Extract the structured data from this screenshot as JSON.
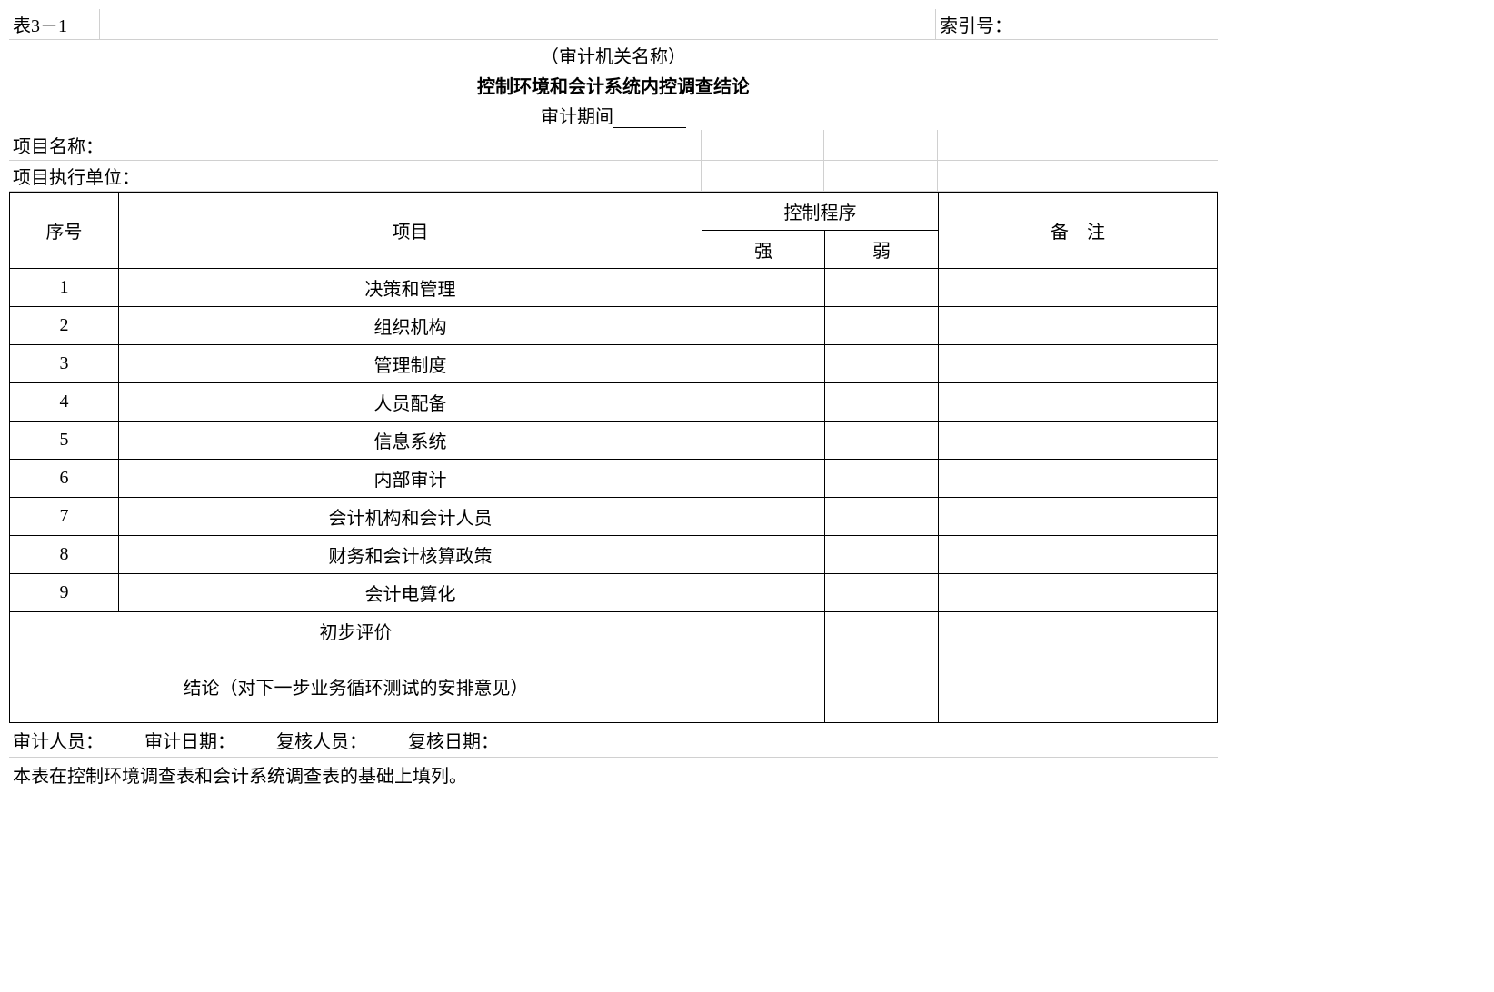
{
  "table_number": "表3－1",
  "index_label": "索引号：",
  "header": {
    "org": "（审计机关名称）",
    "title": "控制环境和会计系统内控调查结论",
    "period_label": "审计期间"
  },
  "info": {
    "project_name": "项目名称：",
    "project_unit": "项目执行单位："
  },
  "columns": {
    "seq": "序号",
    "item": "项目",
    "control": "控制程序",
    "strong": "强",
    "weak": "弱",
    "remark": "备　注"
  },
  "rows": [
    {
      "seq": "1",
      "item": "决策和管理"
    },
    {
      "seq": "2",
      "item": "组织机构"
    },
    {
      "seq": "3",
      "item": "管理制度"
    },
    {
      "seq": "4",
      "item": "人员配备"
    },
    {
      "seq": "5",
      "item": "信息系统"
    },
    {
      "seq": "6",
      "item": "内部审计"
    },
    {
      "seq": "7",
      "item": "会计机构和会计人员"
    },
    {
      "seq": "8",
      "item": "财务和会计核算政策"
    },
    {
      "seq": "9",
      "item": "会计电算化"
    }
  ],
  "prelim": "初步评价",
  "conclusion": "结论（对下一步业务循环测试的安排意见）",
  "footer": {
    "auditor": "审计人员：",
    "audit_date": "审计日期：",
    "reviewer": "复核人员：",
    "review_date": "复核日期："
  },
  "note": "本表在控制环境调查表和会计系统调查表的基础上填列。",
  "style": {
    "border_color": "#000000",
    "light_border": "#d0d0d0",
    "background": "#ffffff",
    "font_family": "SimSun",
    "base_fontsize": 20,
    "title_weight": "bold"
  }
}
